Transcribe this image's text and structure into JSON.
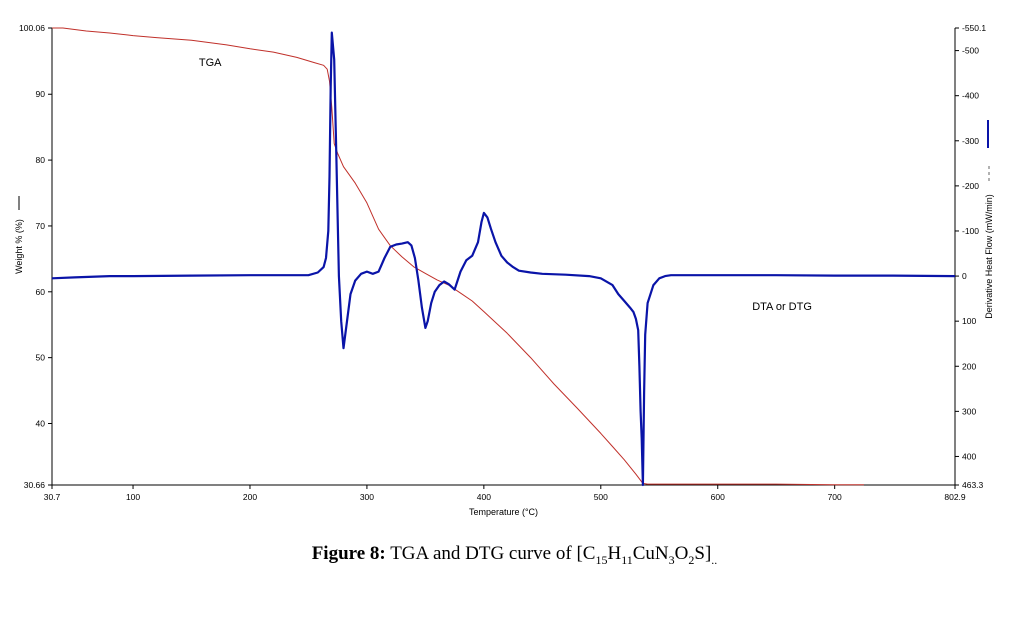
{
  "chart_data": {
    "type": "line",
    "xlabel": "Temperature (°C)",
    "ylabel_left": "Weight % (%)",
    "ylabel_right": "Derivative Heat Flow (mW/min)",
    "xlim": [
      30.7,
      802.9
    ],
    "ylim_left": [
      30.66,
      100.06
    ],
    "ylim_right": [
      -550.1,
      463.3
    ],
    "right_axis_inverted": true,
    "grid": false,
    "xticks": [
      "30.7",
      "100",
      "200",
      "300",
      "400",
      "500",
      "600",
      "700",
      "802.9"
    ],
    "yticks_left": [
      "100.06",
      "90",
      "80",
      "70",
      "60",
      "50",
      "40",
      "30.66"
    ],
    "yticks_right": [
      "-550.1",
      "-500",
      "-400",
      "-300",
      "-200",
      "-100",
      "0",
      "100",
      "200",
      "300",
      "400",
      "463.3"
    ],
    "annotations": [
      "TGA",
      "DTA or DTG"
    ],
    "series": [
      {
        "name": "TGA",
        "axis": "left",
        "color": "#c0302a",
        "x": [
          30.7,
          40,
          60,
          80,
          100,
          120,
          150,
          180,
          200,
          220,
          240,
          255,
          263,
          266,
          268,
          270,
          272,
          275,
          280,
          290,
          300,
          310,
          320,
          330,
          340,
          350,
          360,
          370,
          380,
          390,
          400,
          420,
          440,
          460,
          480,
          500,
          510,
          520,
          530,
          536,
          540,
          560,
          600,
          650,
          700,
          725
        ],
        "values": [
          100.06,
          100.06,
          99.6,
          99.3,
          98.9,
          98.6,
          98.2,
          97.5,
          96.9,
          96.4,
          95.6,
          94.8,
          94.4,
          93.8,
          92.0,
          88.0,
          82.5,
          81.0,
          79.0,
          76.5,
          73.5,
          69.5,
          67.0,
          65.3,
          63.8,
          62.8,
          61.8,
          61.0,
          59.8,
          58.6,
          57.0,
          53.7,
          50.0,
          46.0,
          42.3,
          38.5,
          36.5,
          34.5,
          32.3,
          30.9,
          30.8,
          30.8,
          30.8,
          30.8,
          30.7,
          30.7
        ]
      },
      {
        "name": "DTA or DTG",
        "axis": "right",
        "color": "#0a14a8",
        "x": [
          30.7,
          50,
          80,
          100,
          150,
          200,
          230,
          250,
          258,
          263,
          265,
          267,
          268,
          269,
          270,
          272,
          274,
          276,
          278,
          280,
          283,
          286,
          290,
          295,
          300,
          305,
          310,
          315,
          320,
          325,
          330,
          335,
          338,
          341,
          344,
          347,
          350,
          352,
          355,
          358,
          362,
          366,
          370,
          375,
          380,
          385,
          390,
          395,
          398,
          400,
          403,
          406,
          410,
          415,
          420,
          425,
          430,
          440,
          450,
          470,
          490,
          500,
          510,
          515,
          520,
          525,
          528,
          530,
          532,
          533,
          534,
          535,
          536,
          537,
          538,
          540,
          545,
          550,
          555,
          560,
          600,
          650,
          700,
          750,
          802.9
        ],
        "values": [
          5,
          3,
          0,
          0,
          -1,
          -2,
          -2,
          -2,
          -8,
          -20,
          -40,
          -100,
          -220,
          -420,
          -540,
          -480,
          -250,
          0,
          100,
          160,
          100,
          40,
          10,
          -5,
          -10,
          -5,
          -10,
          -40,
          -65,
          -70,
          -72,
          -75,
          -68,
          -40,
          10,
          70,
          115,
          100,
          60,
          35,
          20,
          12,
          18,
          30,
          -10,
          -35,
          -45,
          -75,
          -120,
          -140,
          -130,
          -105,
          -75,
          -45,
          -30,
          -20,
          -12,
          -8,
          -5,
          -3,
          0,
          5,
          20,
          40,
          55,
          70,
          80,
          95,
          120,
          200,
          300,
          360,
          463.3,
          260,
          130,
          60,
          20,
          5,
          0,
          -2,
          -2,
          -2,
          -1,
          -1,
          0
        ]
      }
    ]
  },
  "caption": {
    "label": "Figure 8:",
    "text": "TGA and DTG curve of",
    "formula": [
      {
        "t": "[C",
        "sub": "15"
      },
      {
        "t": "H",
        "sub": "11"
      },
      {
        "t": "CuN",
        "sub": "3"
      },
      {
        "t": "O",
        "sub": "2"
      },
      {
        "t": "S]",
        "sub": ".."
      }
    ]
  }
}
